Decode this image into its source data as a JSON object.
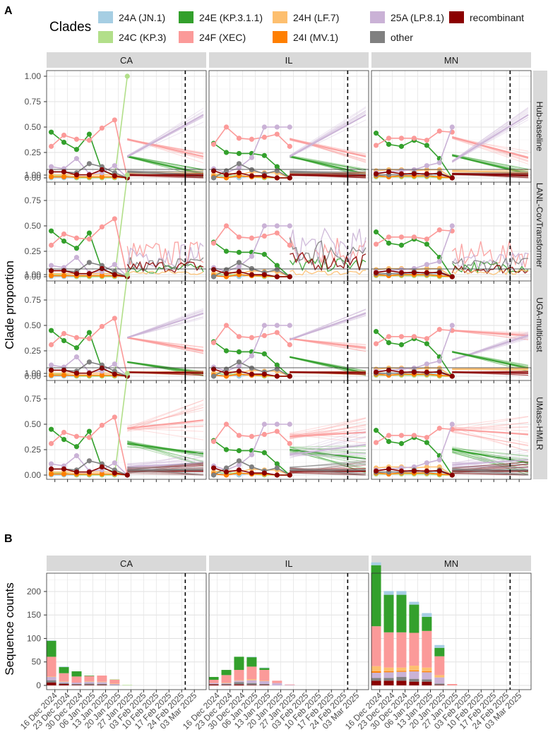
{
  "panel_labels": {
    "a": "A",
    "b": "B"
  },
  "legend": {
    "title": "Clades",
    "items": [
      {
        "label": "24A (JN.1)",
        "color": "#a6cee3"
      },
      {
        "label": "24C (KP.3)",
        "color": "#b2df8a"
      },
      {
        "label": "24E (KP.3.1.1)",
        "color": "#33a02c"
      },
      {
        "label": "24F (XEC)",
        "color": "#fb9a99"
      },
      {
        "label": "24H (LF.7)",
        "color": "#fdbf6f"
      },
      {
        "label": "24I (MV.1)",
        "color": "#ff7f00"
      },
      {
        "label": "25A (LP.8.1)",
        "color": "#cab2d6"
      },
      {
        "label": "other",
        "color": "#808080"
      },
      {
        "label": "recombinant",
        "color": "#8b0000"
      }
    ]
  },
  "states": [
    "CA",
    "IL",
    "MN"
  ],
  "models": [
    "Hub-baseline",
    "LANL-CovTransformer",
    "UGA-multicast",
    "UMass-HMLR"
  ],
  "ylabel_a": "Clade proportion",
  "ylabel_b": "Sequence counts",
  "x_dates": [
    "16 Dec 2024",
    "23 Dec 2024",
    "30 Dec 2024",
    "06 Jan 2025",
    "13 Jan 2025",
    "20 Jan 2025",
    "27 Jan 2025",
    "03 Feb 2025",
    "10 Feb 2025",
    "17 Feb 2025",
    "24 Feb 2025",
    "03 Mar 2025"
  ],
  "y_ticks_a": [
    "0.00",
    "0.25",
    "0.50",
    "0.75",
    "1.00"
  ],
  "y_ticks_b": [
    "0",
    "50",
    "100",
    "150",
    "200"
  ],
  "chart_data": [
    {
      "type": "line",
      "panel": "A",
      "xlabel": "",
      "ylabel": "Clade proportion",
      "ylim": [
        0,
        1.0
      ],
      "reference_date_dashed_line": "2025-02-26",
      "observed": {
        "x": [
          "2024-12-14",
          "2024-12-21",
          "2024-12-28",
          "2025-01-04",
          "2025-01-11",
          "2025-01-18",
          "2025-01-25"
        ],
        "CA": {
          "24A (JN.1)": [
            0.0,
            0.0,
            0.0,
            0.0,
            0.0,
            0.0,
            0.0
          ],
          "24C (KP.3)": [
            0.02,
            0.02,
            0.0,
            0.0,
            0.0,
            0.0,
            1.0
          ],
          "24E (KP.3.1.1)": [
            0.45,
            0.35,
            0.28,
            0.43,
            0.07,
            0.03,
            0.0
          ],
          "24F (XEC)": [
            0.31,
            0.42,
            0.38,
            0.37,
            0.49,
            0.57,
            0.0
          ],
          "24H (LF.7)": [
            0.03,
            0.03,
            0.03,
            0.03,
            0.03,
            0.03,
            0.0
          ],
          "24I (MV.1)": [
            0.01,
            0.01,
            0.01,
            0.01,
            0.01,
            0.01,
            0.0
          ],
          "25A (LP.8.1)": [
            0.11,
            0.09,
            0.19,
            0.04,
            0.05,
            0.12,
            0.0
          ],
          "other": [
            0.06,
            0.06,
            0.05,
            0.14,
            0.11,
            0.05,
            0.0
          ],
          "recombinant": [
            0.06,
            0.06,
            0.03,
            0.03,
            0.08,
            0.02,
            0.0
          ]
        },
        "IL": {
          "24A (JN.1)": [
            0.0,
            0.02,
            0.0,
            0.02,
            0.01,
            0.0,
            0.0
          ],
          "24C (KP.3)": [
            0.03,
            0.02,
            0.02,
            0.01,
            0.0,
            0.0,
            0.0
          ],
          "24E (KP.3.1.1)": [
            0.34,
            0.25,
            0.24,
            0.24,
            0.22,
            0.11,
            0.0
          ],
          "24F (XEC)": [
            0.33,
            0.5,
            0.39,
            0.38,
            0.4,
            0.43,
            0.31
          ],
          "24H (LF.7)": [
            0.03,
            0.05,
            0.03,
            0.06,
            0.05,
            0.05,
            0.0
          ],
          "24I (MV.1)": [
            0.01,
            0.0,
            0.02,
            0.01,
            0.01,
            0.0,
            0.0
          ],
          "25A (LP.8.1)": [
            0.09,
            0.05,
            0.1,
            0.2,
            0.5,
            0.5,
            0.5
          ],
          "other": [
            0.0,
            0.07,
            0.14,
            0.08,
            0.04,
            0.07,
            0.0
          ],
          "recombinant": [
            0.07,
            0.03,
            0.05,
            0.02,
            0.02,
            0.0,
            0.0
          ]
        },
        "MN": {
          "24A (JN.1)": [
            0.02,
            0.03,
            0.03,
            0.03,
            0.02,
            0.03,
            0.0
          ],
          "24C (KP.3)": [
            0.01,
            0.01,
            0.01,
            0.01,
            0.01,
            0.0,
            0.0
          ],
          "24E (KP.3.1.1)": [
            0.44,
            0.33,
            0.31,
            0.37,
            0.32,
            0.19,
            0.0
          ],
          "24F (XEC)": [
            0.32,
            0.39,
            0.39,
            0.39,
            0.37,
            0.46,
            0.45
          ],
          "24H (LF.7)": [
            0.07,
            0.08,
            0.08,
            0.07,
            0.08,
            0.08,
            0.0
          ],
          "24I (MV.1)": [
            0.02,
            0.01,
            0.02,
            0.02,
            0.02,
            0.01,
            0.0
          ],
          "25A (LP.8.1)": [
            0.05,
            0.06,
            0.07,
            0.08,
            0.12,
            0.15,
            0.5
          ],
          "other": [
            0.03,
            0.03,
            0.03,
            0.05,
            0.03,
            0.05,
            0.0
          ],
          "recombinant": [
            0.04,
            0.06,
            0.04,
            0.04,
            0.04,
            0.04,
            0.0
          ]
        }
      },
      "forecast": {
        "x_start": "2025-01-25",
        "x_end": "2025-03-08",
        "Hub-baseline": {
          "CA": {
            "24F (XEC)": [
              0.38,
              0.21
            ],
            "24E (KP.3.1.1)": [
              0.21,
              0.04
            ],
            "25A (LP.8.1)": [
              0.21,
              0.62
            ],
            "24H (LF.7)": [
              0.05,
              0.04
            ],
            "other": [
              0.06,
              0.03
            ],
            "recombinant": [
              0.03,
              0.02
            ]
          },
          "IL": {
            "24F (XEC)": [
              0.38,
              0.21
            ],
            "24E (KP.3.1.1)": [
              0.21,
              0.04
            ],
            "25A (LP.8.1)": [
              0.21,
              0.62
            ],
            "24H (LF.7)": [
              0.05,
              0.04
            ],
            "other": [
              0.06,
              0.03
            ],
            "recombinant": [
              0.03,
              0.02
            ]
          },
          "MN": {
            "24F (XEC)": [
              0.4,
              0.2
            ],
            "24E (KP.3.1.1)": [
              0.22,
              0.04
            ],
            "25A (LP.8.1)": [
              0.16,
              0.62
            ],
            "24H (LF.7)": [
              0.07,
              0.05
            ],
            "other": [
              0.04,
              0.03
            ],
            "recombinant": [
              0.04,
              0.02
            ]
          }
        },
        "LANL-CovTransformer": {
          "CA": {
            "24F (XEC)": [
              0.22,
              0.22
            ],
            "24E (KP.3.1.1)": [
              0.08,
              0.08
            ],
            "25A (LP.8.1)": [
              0.22,
              0.22
            ],
            "other": [
              0.12,
              0.12
            ],
            "recombinant": [
              0.1,
              0.1
            ],
            "24H (LF.7)": [
              0.04,
              0.04
            ]
          },
          "IL": {
            "24F (XEC)": [
              0.27,
              0.27
            ],
            "24E (KP.3.1.1)": [
              0.12,
              0.12
            ],
            "25A (LP.8.1)": [
              0.3,
              0.3
            ],
            "other": [
              0.25,
              0.25
            ],
            "recombinant": [
              0.15,
              0.15
            ],
            "24H (LF.7)": [
              0.04,
              0.04
            ]
          },
          "MN": {
            "24F (XEC)": [
              0.22,
              0.22
            ],
            "24E (KP.3.1.1)": [
              0.1,
              0.1
            ],
            "25A (LP.8.1)": [
              0.15,
              0.15
            ],
            "other": [
              0.12,
              0.12
            ],
            "recombinant": [
              0.08,
              0.08
            ],
            "24H (LF.7)": [
              0.05,
              0.05
            ]
          }
        },
        "UGA-multicast": {
          "CA": {
            "24F (XEC)": [
              0.38,
              0.25
            ],
            "25A (LP.8.1)": [
              0.38,
              0.62
            ],
            "24E (KP.3.1.1)": [
              0.14,
              0.03
            ],
            "24H (LF.7)": [
              0.04,
              0.03
            ],
            "recombinant": [
              0.04,
              0.03
            ]
          },
          "IL": {
            "24F (XEC)": [
              0.37,
              0.28
            ],
            "25A (LP.8.1)": [
              0.36,
              0.62
            ],
            "24E (KP.3.1.1)": [
              0.19,
              0.03
            ],
            "24H (LF.7)": [
              0.04,
              0.03
            ],
            "recombinant": [
              0.04,
              0.03
            ]
          },
          "MN": {
            "24F (XEC)": [
              0.45,
              0.4
            ],
            "25A (LP.8.1)": [
              0.16,
              0.4
            ],
            "24E (KP.3.1.1)": [
              0.24,
              0.08
            ],
            "24H (LF.7)": [
              0.07,
              0.07
            ],
            "recombinant": [
              0.04,
              0.03
            ]
          }
        },
        "UMass-HMLR": {
          "CA": {
            "24F (XEC)": [
              0.46,
              0.54
            ],
            "24E (KP.3.1.1)": [
              0.31,
              0.21
            ],
            "25A (LP.8.1)": [
              0.08,
              0.12
            ],
            "recombinant": [
              0.04,
              0.04
            ],
            "other": [
              0.05,
              0.05
            ]
          },
          "IL": {
            "24F (XEC)": [
              0.38,
              0.42
            ],
            "24E (KP.3.1.1)": [
              0.25,
              0.16
            ],
            "25A (LP.8.1)": [
              0.2,
              0.3
            ],
            "recombinant": [
              0.04,
              0.04
            ],
            "other": [
              0.05,
              0.05
            ]
          },
          "MN": {
            "24F (XEC)": [
              0.45,
              0.4
            ],
            "24E (KP.3.1.1)": [
              0.25,
              0.12
            ],
            "25A (LP.8.1)": [
              0.1,
              0.15
            ],
            "recombinant": [
              0.04,
              0.04
            ],
            "other": [
              0.05,
              0.05
            ]
          }
        }
      }
    },
    {
      "type": "bar",
      "panel": "B",
      "xlabel": "",
      "ylabel": "Sequence counts",
      "ylim": [
        0,
        230
      ],
      "stacked": true,
      "reference_date_dashed_line": "2025-02-26",
      "x": [
        "2024-12-14",
        "2024-12-21",
        "2024-12-28",
        "2025-01-04",
        "2025-01-11",
        "2025-01-18",
        "2025-01-25"
      ],
      "CA": {
        "recombinant": [
          6,
          3,
          1,
          1,
          1,
          0,
          0
        ],
        "other": [
          5,
          2,
          2,
          3,
          2,
          1,
          0
        ],
        "25A (LP.8.1)": [
          7,
          3,
          3,
          4,
          4,
          2,
          0
        ],
        "24F (XEC)": [
          42,
          17,
          13,
          11,
          13,
          8,
          0
        ],
        "24E (KP.3.1.1)": [
          34,
          13,
          11,
          1,
          0,
          0,
          0
        ],
        "24H (LF.7)": [
          1,
          1,
          0,
          1,
          1,
          1,
          0
        ],
        "24A (JN.1)": [
          1,
          1,
          0,
          0,
          0,
          0,
          0
        ],
        "24C (KP.3)": [
          0,
          0,
          0,
          0,
          0,
          1,
          1
        ]
      },
      "IL": {
        "recombinant": [
          2,
          1,
          2,
          1,
          1,
          0,
          0
        ],
        "other": [
          1,
          2,
          5,
          4,
          2,
          0,
          0
        ],
        "25A (LP.8.1)": [
          2,
          2,
          3,
          6,
          6,
          5,
          1
        ],
        "24F (XEC)": [
          7,
          16,
          22,
          27,
          23,
          5,
          1
        ],
        "24E (KP.3.1.1)": [
          6,
          11,
          28,
          20,
          4,
          0,
          0
        ],
        "24H (LF.7)": [
          0,
          1,
          1,
          2,
          1,
          0,
          0
        ],
        "24A (JN.1)": [
          0,
          0,
          0,
          1,
          1,
          0,
          0
        ]
      },
      "MN": {
        "recombinant": [
          10,
          10,
          10,
          8,
          8,
          1,
          0
        ],
        "other": [
          6,
          6,
          8,
          6,
          5,
          3,
          0
        ],
        "25A (LP.8.1)": [
          11,
          12,
          11,
          16,
          15,
          13,
          0
        ],
        "24F (XEC)": [
          85,
          75,
          75,
          70,
          78,
          40,
          3
        ],
        "24E (KP.3.1.1)": [
          130,
          80,
          80,
          60,
          30,
          18,
          0
        ],
        "24H (LF.7)": [
          11,
          8,
          7,
          10,
          8,
          5,
          0
        ],
        "24I (MV.1)": [
          3,
          2,
          2,
          2,
          2,
          0,
          0
        ],
        "24A (JN.1)": [
          6,
          8,
          8,
          6,
          8,
          6,
          0
        ]
      }
    }
  ]
}
